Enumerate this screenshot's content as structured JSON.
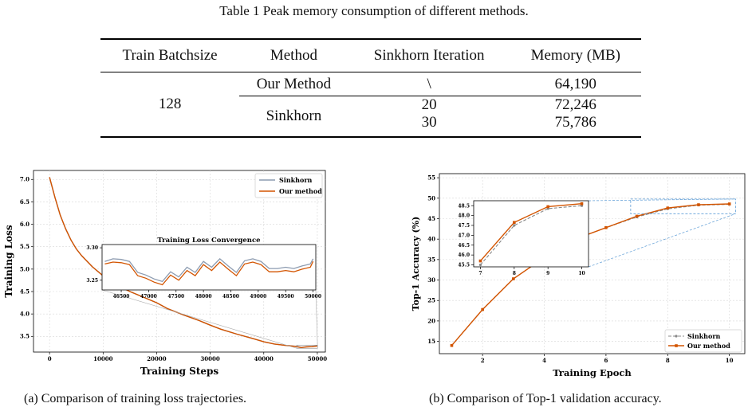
{
  "table": {
    "caption": "Table 1 Peak memory consumption of different methods.",
    "headers": [
      "Train Batchsize",
      "Method",
      "Sinkhorn Iteration",
      "Memory (MB)"
    ],
    "batchsize": "128",
    "rows": [
      {
        "method": "Our Method",
        "iteration": "\\",
        "memory": "64,190"
      },
      {
        "method": "Sinkhorn",
        "iteration": "20",
        "memory": "72,246"
      },
      {
        "method": "",
        "iteration": "30",
        "memory": "75,786"
      }
    ]
  },
  "figures": {
    "a_caption": "(a) Comparison of training loss trajectories.",
    "b_caption": "(b) Comparison of Top-1 validation accuracy."
  },
  "colors": {
    "sinkhorn": "#8c9bb0",
    "ours": "#d35400",
    "zoom_box_b": "#5b9bd5"
  },
  "chart_data": [
    {
      "type": "line",
      "xlabel": "Training Steps",
      "ylabel": "Training Loss",
      "xlim": [
        -3000,
        51500
      ],
      "ylim": [
        3.15,
        7.2
      ],
      "xticks": [
        0,
        10000,
        20000,
        30000,
        40000,
        50000
      ],
      "yticks": [
        3.5,
        4.0,
        4.5,
        5.0,
        5.5,
        6.0,
        6.5,
        7.0
      ],
      "xtick_labels": [
        "0",
        "10000",
        "20000",
        "30000",
        "40000",
        "50000"
      ],
      "ytick_labels": [
        "3.5",
        "4.0",
        "4.5",
        "5.0",
        "5.5",
        "6.0",
        "6.5",
        "7.0"
      ],
      "grid": true,
      "legend": "top-right",
      "x": [
        0,
        1000,
        2000,
        3000,
        4000,
        5000,
        6000,
        8000,
        10000,
        12000,
        15000,
        18000,
        20000,
        22000,
        25000,
        28000,
        30000,
        32000,
        35000,
        38000,
        40000,
        42000,
        44000,
        46000,
        47000,
        48000,
        49000,
        50000
      ],
      "series": [
        {
          "name": "Sinkhorn",
          "values": [
            7.05,
            6.6,
            6.2,
            5.9,
            5.65,
            5.45,
            5.3,
            5.05,
            4.85,
            4.68,
            4.5,
            4.35,
            4.25,
            4.12,
            3.98,
            3.85,
            3.75,
            3.66,
            3.55,
            3.45,
            3.38,
            3.33,
            3.3,
            3.28,
            3.255,
            3.27,
            3.275,
            3.29
          ]
        },
        {
          "name": "Our method",
          "values": [
            7.05,
            6.6,
            6.2,
            5.9,
            5.65,
            5.45,
            5.3,
            5.05,
            4.85,
            4.68,
            4.5,
            4.35,
            4.25,
            4.12,
            3.98,
            3.85,
            3.75,
            3.66,
            3.55,
            3.45,
            3.38,
            3.33,
            3.3,
            3.275,
            3.25,
            3.265,
            3.27,
            3.285
          ]
        }
      ],
      "inset": {
        "title": "Training Loss Convergence",
        "xticks": [
          46500,
          47000,
          47500,
          48000,
          48500,
          49000,
          49500,
          50000
        ],
        "xtick_labels": [
          "46500",
          "47000",
          "47500",
          "48000",
          "48500",
          "49000",
          "49500",
          "50000"
        ],
        "yticks": [
          3.25,
          3.3
        ],
        "ytick_labels": [
          "3.25",
          "3.30"
        ],
        "xlim": [
          46150,
          50050
        ],
        "ylim": [
          3.235,
          3.305
        ],
        "x": [
          46200,
          46350,
          46500,
          46650,
          46800,
          46950,
          47100,
          47250,
          47400,
          47550,
          47700,
          47850,
          48000,
          48150,
          48300,
          48450,
          48600,
          48750,
          48900,
          49050,
          49200,
          49350,
          49500,
          49650,
          49800,
          49950,
          50000
        ],
        "series": [
          {
            "name": "Sinkhorn",
            "values": [
              3.279,
              3.283,
              3.282,
              3.279,
              3.262,
              3.258,
              3.252,
              3.248,
              3.263,
              3.255,
              3.27,
              3.262,
              3.279,
              3.27,
              3.283,
              3.272,
              3.262,
              3.28,
              3.283,
              3.279,
              3.268,
              3.268,
              3.27,
              3.268,
              3.272,
              3.275,
              3.283
            ]
          },
          {
            "name": "Our method",
            "values": [
              3.275,
              3.278,
              3.277,
              3.274,
              3.257,
              3.253,
              3.247,
              3.243,
              3.258,
              3.25,
              3.265,
              3.257,
              3.274,
              3.265,
              3.278,
              3.267,
              3.257,
              3.275,
              3.278,
              3.274,
              3.263,
              3.263,
              3.265,
              3.263,
              3.267,
              3.27,
              3.279
            ]
          }
        ]
      }
    },
    {
      "type": "line",
      "xlabel": "Training Epoch",
      "ylabel": "Top-1 Accuracy (%)",
      "xlim": [
        0.6,
        10.5
      ],
      "ylim": [
        12,
        56
      ],
      "xticks": [
        2,
        4,
        6,
        8,
        10
      ],
      "xtick_labels": [
        "2",
        "4",
        "6",
        "8",
        "10"
      ],
      "yticks": [
        15,
        20,
        25,
        30,
        35,
        40,
        45,
        50,
        55
      ],
      "ytick_labels": [
        "15",
        "20",
        "25",
        "30",
        "35",
        "40",
        "45",
        "50",
        "55"
      ],
      "grid": true,
      "legend": "bottom-right",
      "x": [
        1,
        2,
        3,
        4,
        5,
        6,
        7,
        8,
        9,
        10
      ],
      "series": [
        {
          "name": "Sinkhorn",
          "values": [
            14.0,
            22.8,
            30.3,
            35.5,
            40.0,
            42.8,
            45.4,
            47.4,
            48.3,
            48.5
          ]
        },
        {
          "name": "Our method",
          "values": [
            14.0,
            22.8,
            30.3,
            35.5,
            40.0,
            42.8,
            45.6,
            47.6,
            48.4,
            48.6
          ]
        }
      ],
      "inset": {
        "xticks": [
          7,
          8,
          9,
          10
        ],
        "xtick_labels": [
          "7",
          "8",
          "9",
          "10"
        ],
        "yticks": [
          45.5,
          46.0,
          46.5,
          47.0,
          47.5,
          48.0,
          48.5
        ],
        "ytick_labels": [
          "45.5",
          "46.0",
          "46.5",
          "47.0",
          "47.5",
          "48.0",
          "48.5"
        ],
        "xlim": [
          6.8,
          10.2
        ],
        "ylim": [
          45.4,
          48.75
        ],
        "x": [
          7,
          8,
          9,
          10
        ],
        "series": [
          {
            "name": "Sinkhorn",
            "values": [
              45.5,
              47.5,
              48.35,
              48.5
            ]
          },
          {
            "name": "Our method",
            "values": [
              45.7,
              47.65,
              48.45,
              48.6
            ]
          }
        ]
      }
    }
  ]
}
